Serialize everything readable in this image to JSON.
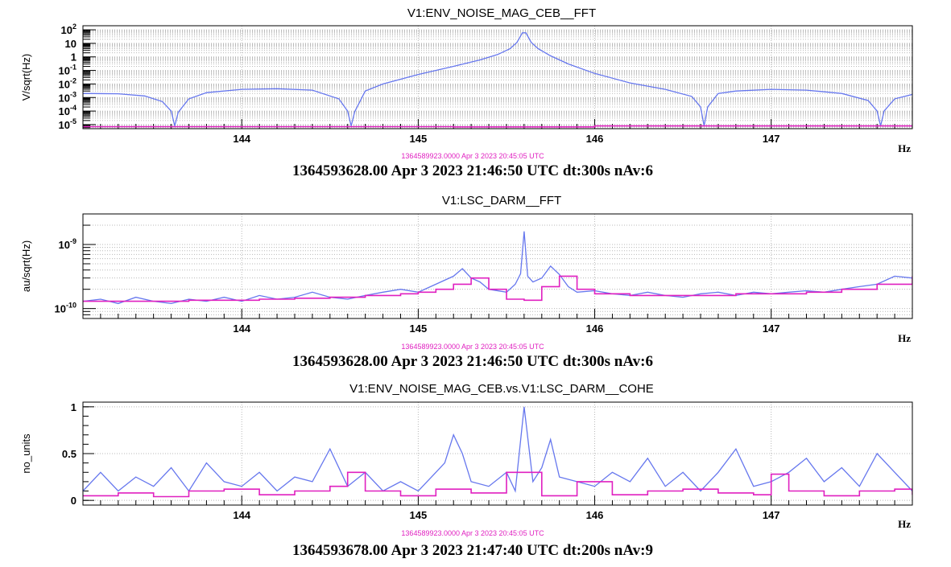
{
  "colors": {
    "series_a": "#6677ee",
    "series_b": "#e020c0",
    "grid": "#b8b8b8",
    "axis": "#000000"
  },
  "chart_data": [
    {
      "type": "line",
      "title": "V1:ENV_NOISE_MAG_CEB__FFT",
      "xlabel": "Hz",
      "ylabel": "V/sqrt(Hz)",
      "xlim": [
        143.1,
        147.8
      ],
      "ylim": [
        5e-06,
        200
      ],
      "yscale": "log",
      "xticks": [
        "144",
        "145",
        "146",
        "147"
      ],
      "yticks": [
        {
          "base": "10",
          "exp": "2",
          "value": 100
        },
        {
          "base": "10",
          "exp": "",
          "value": 10
        },
        {
          "base": "1",
          "exp": "",
          "value": 1
        },
        {
          "base": "10",
          "exp": "-1",
          "value": 0.1
        },
        {
          "base": "10",
          "exp": "-2",
          "value": 0.01
        },
        {
          "base": "10",
          "exp": "-3",
          "value": 0.001
        },
        {
          "base": "10",
          "exp": "-4",
          "value": 0.0001
        },
        {
          "base": "10",
          "exp": "-5",
          "value": 1e-05
        }
      ],
      "grid": true,
      "reference_time": "1364589923.0000 Apr 3 2023 20:45:05 UTC",
      "timestamp": "1364593628.00 Apr 3 2023 21:46:50 UTC dt:300s nAv:6",
      "series": [
        {
          "color": "#6677ee",
          "x": [
            143.1,
            143.3,
            143.45,
            143.55,
            143.6,
            143.62,
            143.64,
            143.7,
            143.8,
            144.0,
            144.2,
            144.4,
            144.55,
            144.6,
            144.62,
            144.64,
            144.7,
            144.8,
            145.0,
            145.2,
            145.35,
            145.45,
            145.52,
            145.56,
            145.59,
            145.6,
            145.61,
            145.64,
            145.68,
            145.75,
            145.85,
            146.0,
            146.2,
            146.4,
            146.55,
            146.6,
            146.62,
            146.64,
            146.7,
            146.8,
            147.0,
            147.2,
            147.4,
            147.55,
            147.6,
            147.62,
            147.64,
            147.7,
            147.8
          ],
          "y": [
            0.002,
            0.0019,
            0.0013,
            0.0005,
            0.0001,
            8e-06,
            8e-05,
            0.0008,
            0.0023,
            0.004,
            0.0045,
            0.0035,
            0.0008,
            0.0001,
            8e-06,
            9e-05,
            0.003,
            0.01,
            0.05,
            0.2,
            0.6,
            1.5,
            4,
            12,
            60,
            60,
            60,
            12,
            4,
            1.2,
            0.3,
            0.06,
            0.012,
            0.004,
            0.0012,
            0.0002,
            8e-06,
            0.0002,
            0.002,
            0.003,
            0.004,
            0.0035,
            0.002,
            0.0006,
            0.0001,
            8e-06,
            0.0001,
            0.0008,
            0.0017
          ]
        },
        {
          "color": "#e020c0",
          "x": [
            143.1,
            145.1,
            145.2,
            145.95,
            146.0,
            147.8
          ],
          "y": [
            7e-06,
            7e-06,
            6.8e-06,
            6.8e-06,
            8e-06,
            8e-06
          ]
        }
      ]
    },
    {
      "type": "line",
      "title": "V1:LSC_DARM__FFT",
      "xlabel": "Hz",
      "ylabel": "au/sqrt(Hz)",
      "xlim": [
        143.1,
        147.8
      ],
      "ylim": [
        7e-11,
        3e-09
      ],
      "yscale": "log",
      "xticks": [
        "144",
        "145",
        "146",
        "147"
      ],
      "yticks": [
        {
          "base": "10",
          "exp": "-9",
          "value": 1e-09
        },
        {
          "base": "10",
          "exp": "-10",
          "value": 1e-10
        }
      ],
      "grid": true,
      "reference_time": "1364589923.0000 Apr 3 2023 20:45:05 UTC",
      "timestamp": "1364593628.00 Apr 3 2023 21:46:50 UTC dt:300s nAv:6",
      "series": [
        {
          "color": "#6677ee",
          "x": [
            143.1,
            143.2,
            143.3,
            143.4,
            143.5,
            143.6,
            143.7,
            143.8,
            143.9,
            144.0,
            144.1,
            144.2,
            144.3,
            144.4,
            144.5,
            144.6,
            144.7,
            144.8,
            144.9,
            145.0,
            145.1,
            145.2,
            145.25,
            145.3,
            145.35,
            145.4,
            145.5,
            145.55,
            145.58,
            145.6,
            145.62,
            145.65,
            145.7,
            145.75,
            145.8,
            145.85,
            145.9,
            146.0,
            146.1,
            146.2,
            146.3,
            146.4,
            146.5,
            146.6,
            146.7,
            146.8,
            146.9,
            147.0,
            147.1,
            147.2,
            147.3,
            147.4,
            147.5,
            147.6,
            147.7,
            147.8
          ],
          "y": [
            1.3e-10,
            1.4e-10,
            1.2e-10,
            1.5e-10,
            1.3e-10,
            1.2e-10,
            1.4e-10,
            1.3e-10,
            1.5e-10,
            1.3e-10,
            1.6e-10,
            1.4e-10,
            1.5e-10,
            1.8e-10,
            1.5e-10,
            1.4e-10,
            1.6e-10,
            1.8e-10,
            2e-10,
            1.8e-10,
            2.4e-10,
            3.2e-10,
            4.2e-10,
            3e-10,
            2.6e-10,
            2e-10,
            1.8e-10,
            2.4e-10,
            3.5e-10,
            1.6e-09,
            3.2e-10,
            2.6e-10,
            3e-10,
            4.6e-10,
            3.4e-10,
            2.2e-10,
            1.8e-10,
            1.9e-10,
            1.7e-10,
            1.6e-10,
            1.8e-10,
            1.6e-10,
            1.5e-10,
            1.7e-10,
            1.8e-10,
            1.6e-10,
            1.8e-10,
            1.7e-10,
            1.8e-10,
            1.9e-10,
            1.8e-10,
            2e-10,
            2.2e-10,
            2.4e-10,
            3.2e-10,
            3e-10
          ]
        },
        {
          "color": "#e020c0",
          "x": [
            143.1,
            143.3,
            143.5,
            143.7,
            143.9,
            144.1,
            144.3,
            144.5,
            144.7,
            144.9,
            145.0,
            145.1,
            145.2,
            145.3,
            145.4,
            145.5,
            145.6,
            145.7,
            145.8,
            145.9,
            146.0,
            146.2,
            146.4,
            146.6,
            146.8,
            147.0,
            147.2,
            147.4,
            147.6,
            147.8
          ],
          "y": [
            1.3e-10,
            1.3e-10,
            1.3e-10,
            1.35e-10,
            1.35e-10,
            1.4e-10,
            1.45e-10,
            1.5e-10,
            1.6e-10,
            1.7e-10,
            1.8e-10,
            2e-10,
            2.4e-10,
            3e-10,
            2e-10,
            1.4e-10,
            1.35e-10,
            2.2e-10,
            3.2e-10,
            2e-10,
            1.7e-10,
            1.6e-10,
            1.6e-10,
            1.6e-10,
            1.7e-10,
            1.7e-10,
            1.8e-10,
            2e-10,
            2.4e-10,
            3.2e-10
          ]
        }
      ]
    },
    {
      "type": "line",
      "title": "V1:ENV_NOISE_MAG_CEB.vs.V1:LSC_DARM__COHE",
      "xlabel": "Hz",
      "ylabel": "no_units",
      "xlim": [
        143.1,
        147.8
      ],
      "ylim": [
        -0.05,
        1.05
      ],
      "yscale": "linear",
      "xticks": [
        "144",
        "145",
        "146",
        "147"
      ],
      "yticks": [
        {
          "base": "1",
          "exp": "",
          "value": 1
        },
        {
          "base": "0.5",
          "exp": "",
          "value": 0.5
        },
        {
          "base": "0",
          "exp": "",
          "value": 0
        }
      ],
      "grid": true,
      "reference_time": "1364589923.0000 Apr 3 2023 20:45:05 UTC",
      "timestamp": "1364593678.00 Apr 3 2023 21:47:40 UTC dt:200s nAv:9",
      "series": [
        {
          "color": "#6677ee",
          "x": [
            143.1,
            143.2,
            143.3,
            143.4,
            143.5,
            143.6,
            143.7,
            143.8,
            143.9,
            144.0,
            144.1,
            144.2,
            144.3,
            144.4,
            144.5,
            144.6,
            144.7,
            144.8,
            144.9,
            145.0,
            145.1,
            145.15,
            145.2,
            145.25,
            145.3,
            145.4,
            145.5,
            145.55,
            145.6,
            145.65,
            145.7,
            145.75,
            145.8,
            145.9,
            146.0,
            146.1,
            146.2,
            146.3,
            146.4,
            146.5,
            146.6,
            146.7,
            146.8,
            146.9,
            147.0,
            147.1,
            147.2,
            147.3,
            147.4,
            147.5,
            147.6,
            147.7,
            147.8
          ],
          "y": [
            0.1,
            0.3,
            0.1,
            0.25,
            0.15,
            0.35,
            0.1,
            0.4,
            0.2,
            0.15,
            0.3,
            0.1,
            0.25,
            0.2,
            0.55,
            0.15,
            0.3,
            0.1,
            0.2,
            0.1,
            0.3,
            0.4,
            0.7,
            0.5,
            0.2,
            0.15,
            0.3,
            0.1,
            1.0,
            0.2,
            0.35,
            0.65,
            0.25,
            0.2,
            0.15,
            0.3,
            0.2,
            0.45,
            0.15,
            0.3,
            0.1,
            0.3,
            0.55,
            0.15,
            0.2,
            0.3,
            0.45,
            0.2,
            0.35,
            0.15,
            0.5,
            0.3,
            0.1
          ]
        },
        {
          "color": "#e020c0",
          "x": [
            143.1,
            143.3,
            143.5,
            143.7,
            143.9,
            144.1,
            144.3,
            144.5,
            144.6,
            144.7,
            144.9,
            145.1,
            145.3,
            145.5,
            145.7,
            145.9,
            146.1,
            146.3,
            146.5,
            146.7,
            146.9,
            147.0,
            147.1,
            147.3,
            147.5,
            147.7,
            147.8
          ],
          "y": [
            0.05,
            0.08,
            0.04,
            0.1,
            0.12,
            0.06,
            0.1,
            0.15,
            0.3,
            0.1,
            0.05,
            0.12,
            0.08,
            0.3,
            0.05,
            0.2,
            0.06,
            0.1,
            0.12,
            0.08,
            0.06,
            0.28,
            0.1,
            0.05,
            0.1,
            0.12,
            0.06
          ]
        }
      ]
    }
  ]
}
